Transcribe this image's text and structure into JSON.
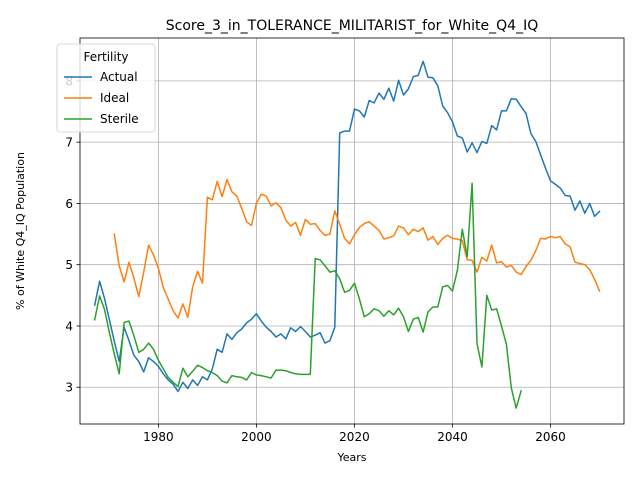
{
  "chart_data": {
    "type": "line",
    "title": "Score_3_in_TOLERANCE_MILITARIST_for_White_Q4_IQ",
    "xlabel": "Years",
    "ylabel": "% of White Q4_IQ Population",
    "xlim": [
      1964,
      2075
    ],
    "ylim": [
      2.4,
      8.7
    ],
    "xticks": [
      1980,
      2000,
      2020,
      2040,
      2060
    ],
    "yticks": [
      3,
      4,
      5,
      6,
      7,
      8
    ],
    "grid": true,
    "legend": {
      "title": "Fertility",
      "placement": "top-left"
    },
    "series": [
      {
        "name": "Actual",
        "color": "#1f77b4",
        "x": [
          1967,
          1968,
          1969,
          1970,
          1971,
          1972,
          1973,
          1974,
          1975,
          1976,
          1977,
          1978,
          1979,
          1980,
          1981,
          1982,
          1983,
          1984,
          1985,
          1986,
          1987,
          1988,
          1989,
          1990,
          1991,
          1992,
          1993,
          1994,
          1995,
          1996,
          1997,
          1998,
          1999,
          2000,
          2001,
          2002,
          2003,
          2004,
          2005,
          2006,
          2007,
          2008,
          2009,
          2010,
          2011,
          2012,
          2013,
          2014,
          2015,
          2016,
          2017,
          2018,
          2019,
          2020,
          2021,
          2022,
          2023,
          2024,
          2025,
          2026,
          2027,
          2028,
          2029,
          2030,
          2031,
          2032,
          2033,
          2034,
          2035,
          2036,
          2037,
          2038,
          2039,
          2040,
          2041,
          2042,
          2043,
          2044,
          2045,
          2046,
          2047,
          2048,
          2049,
          2050,
          2051,
          2052,
          2053,
          2054,
          2055,
          2056,
          2057,
          2058,
          2059,
          2060,
          2061,
          2062,
          2063,
          2064,
          2065,
          2066,
          2067,
          2068,
          2069,
          2070
        ],
        "y": [
          4.34,
          4.73,
          4.45,
          4.1,
          3.75,
          3.42,
          3.98,
          3.76,
          3.52,
          3.42,
          3.25,
          3.48,
          3.42,
          3.34,
          3.22,
          3.12,
          3.05,
          2.93,
          3.08,
          2.98,
          3.12,
          3.03,
          3.17,
          3.12,
          3.3,
          3.62,
          3.57,
          3.87,
          3.78,
          3.89,
          3.95,
          4.05,
          4.11,
          4.2,
          4.08,
          3.98,
          3.91,
          3.82,
          3.87,
          3.79,
          3.97,
          3.91,
          3.99,
          3.91,
          3.82,
          3.85,
          3.89,
          3.72,
          3.76,
          3.98,
          7.15,
          7.18,
          7.18,
          7.54,
          7.51,
          7.41,
          7.68,
          7.64,
          7.8,
          7.7,
          7.88,
          7.67,
          8.01,
          7.77,
          7.87,
          8.07,
          8.09,
          8.32,
          8.06,
          8.05,
          7.92,
          7.59,
          7.48,
          7.33,
          7.1,
          7.07,
          6.84,
          6.99,
          6.83,
          7.01,
          6.98,
          7.27,
          7.2,
          7.51,
          7.51,
          7.71,
          7.7,
          7.58,
          7.47,
          7.14,
          7.01,
          6.79,
          6.57,
          6.37,
          6.31,
          6.25,
          6.13,
          6.12,
          5.89,
          6.04,
          5.84,
          6.0,
          5.79,
          5.87
        ]
      },
      {
        "name": "Ideal",
        "color": "#ff7f0e",
        "x": [
          1971,
          1972,
          1973,
          1974,
          1975,
          1976,
          1977,
          1978,
          1979,
          1980,
          1981,
          1982,
          1983,
          1984,
          1985,
          1986,
          1987,
          1988,
          1989,
          1990,
          1991,
          1992,
          1993,
          1994,
          1995,
          1996,
          1997,
          1998,
          1999,
          2000,
          2001,
          2002,
          2003,
          2004,
          2005,
          2006,
          2007,
          2008,
          2009,
          2010,
          2011,
          2012,
          2013,
          2014,
          2015,
          2016,
          2017,
          2018,
          2019,
          2020,
          2021,
          2022,
          2023,
          2024,
          2025,
          2026,
          2027,
          2028,
          2029,
          2030,
          2031,
          2032,
          2033,
          2034,
          2035,
          2036,
          2037,
          2038,
          2039,
          2040,
          2041,
          2042,
          2043,
          2044,
          2045,
          2046,
          2047,
          2048,
          2049,
          2050,
          2051,
          2052,
          2053,
          2054,
          2055,
          2056,
          2057,
          2058,
          2059,
          2060,
          2061,
          2062,
          2063,
          2064,
          2065,
          2066,
          2067,
          2068,
          2069,
          2070
        ],
        "y": [
          5.5,
          4.98,
          4.72,
          5.04,
          4.78,
          4.48,
          4.88,
          5.32,
          5.16,
          4.94,
          4.63,
          4.44,
          4.25,
          4.13,
          4.36,
          4.14,
          4.64,
          4.89,
          4.7,
          6.1,
          6.06,
          6.36,
          6.11,
          6.39,
          6.19,
          6.12,
          5.92,
          5.7,
          5.64,
          6.0,
          6.15,
          6.12,
          5.96,
          6.01,
          5.93,
          5.73,
          5.63,
          5.69,
          5.48,
          5.74,
          5.66,
          5.67,
          5.56,
          5.48,
          5.5,
          5.88,
          5.66,
          5.43,
          5.34,
          5.49,
          5.61,
          5.67,
          5.7,
          5.63,
          5.56,
          5.42,
          5.44,
          5.47,
          5.63,
          5.6,
          5.49,
          5.58,
          5.54,
          5.6,
          5.4,
          5.46,
          5.33,
          5.43,
          5.48,
          5.43,
          5.42,
          5.39,
          5.08,
          5.07,
          4.88,
          5.12,
          5.06,
          5.32,
          5.03,
          5.05,
          4.96,
          4.99,
          4.88,
          4.84,
          4.97,
          5.07,
          5.23,
          5.43,
          5.42,
          5.46,
          5.44,
          5.46,
          5.34,
          5.29,
          5.04,
          5.02,
          5.0,
          4.92,
          4.76,
          4.57
        ]
      },
      {
        "name": "Sterile",
        "color": "#2ca02c",
        "x": [
          1967,
          1968,
          1969,
          1970,
          1971,
          1972,
          1973,
          1974,
          1975,
          1976,
          1977,
          1978,
          1979,
          1980,
          1981,
          1982,
          1983,
          1984,
          1985,
          1986,
          1987,
          1988,
          1989,
          1990,
          1991,
          1992,
          1993,
          1994,
          1995,
          1996,
          1997,
          1998,
          1999,
          2000,
          2001,
          2002,
          2003,
          2004,
          2005,
          2006,
          2007,
          2008,
          2009,
          2010,
          2011,
          2012,
          2013,
          2014,
          2015,
          2016,
          2017,
          2018,
          2019,
          2020,
          2021,
          2022,
          2023,
          2024,
          2025,
          2026,
          2027,
          2028,
          2029,
          2030,
          2031,
          2032,
          2033,
          2034,
          2035,
          2036,
          2037,
          2038,
          2039,
          2040,
          2041,
          2042,
          2043,
          2044,
          2045,
          2046,
          2047,
          2048,
          2049,
          2050,
          2051,
          2052,
          2053,
          2054
        ],
        "y": [
          4.1,
          4.49,
          4.27,
          3.89,
          3.54,
          3.22,
          4.06,
          4.08,
          3.84,
          3.57,
          3.62,
          3.72,
          3.62,
          3.44,
          3.3,
          3.16,
          3.08,
          3.01,
          3.31,
          3.17,
          3.26,
          3.36,
          3.32,
          3.27,
          3.24,
          3.19,
          3.1,
          3.07,
          3.19,
          3.17,
          3.16,
          3.12,
          3.24,
          3.2,
          3.19,
          3.17,
          3.15,
          3.28,
          3.28,
          3.27,
          3.24,
          3.22,
          3.21,
          3.21,
          3.21,
          5.1,
          5.08,
          4.98,
          4.88,
          4.9,
          4.77,
          4.55,
          4.58,
          4.7,
          4.44,
          4.15,
          4.2,
          4.28,
          4.25,
          4.16,
          4.25,
          4.18,
          4.29,
          4.15,
          3.91,
          4.11,
          4.14,
          3.9,
          4.23,
          4.31,
          4.31,
          4.64,
          4.66,
          4.57,
          4.91,
          5.58,
          5.13,
          6.33,
          3.71,
          3.33,
          4.5,
          4.26,
          4.28,
          4.0,
          3.7,
          2.99,
          2.66,
          2.94
        ]
      }
    ]
  }
}
